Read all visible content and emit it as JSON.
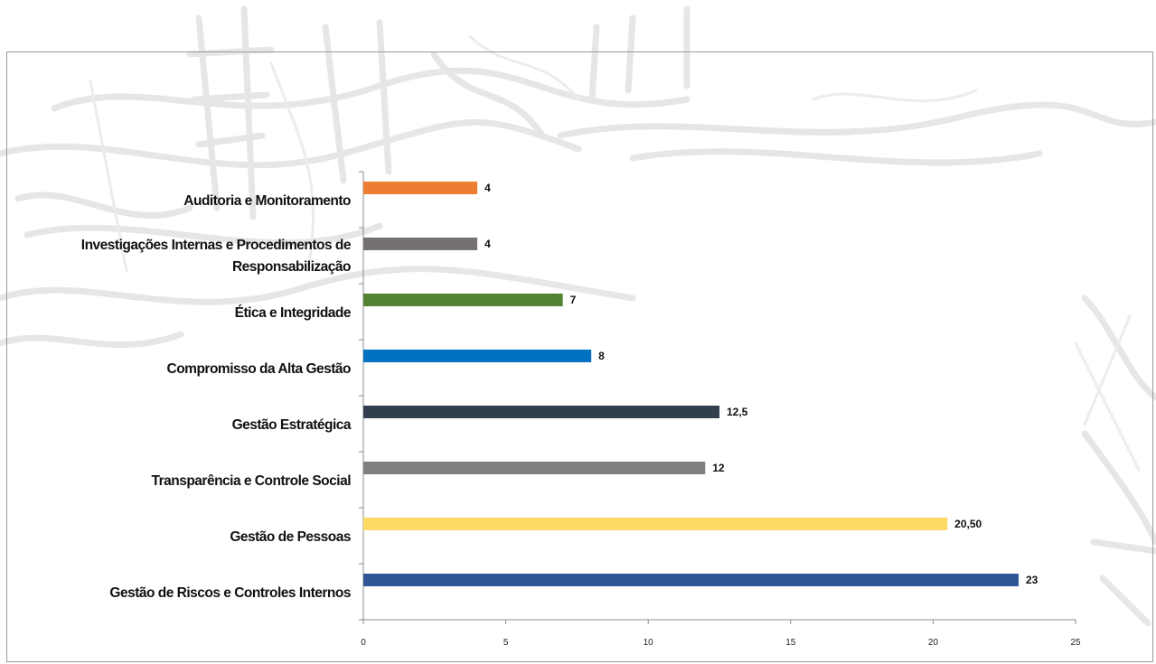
{
  "chart_data": {
    "type": "bar",
    "orientation": "horizontal",
    "categories": [
      "Auditoria e Monitoramento",
      "Investigações Internas e Procedimentos de Responsabilização",
      "Ética e Integridade",
      "Compromisso da Alta Gestão",
      "Gestão Estratégica",
      "Transparência e Controle Social",
      "Gestão de Pessoas",
      "Gestão de Riscos e Controles Internos"
    ],
    "category_lines": [
      [
        "Auditoria e Monitoramento"
      ],
      [
        "Investigações Internas e Procedimentos de",
        "Responsabilização"
      ],
      [
        "Ética e Integridade"
      ],
      [
        "Compromisso da Alta Gestão"
      ],
      [
        "Gestão Estratégica"
      ],
      [
        "Transparência e Controle Social"
      ],
      [
        "Gestão de Pessoas"
      ],
      [
        "Gestão de Riscos e Controles Internos"
      ]
    ],
    "values": [
      4,
      4,
      7,
      8,
      12.5,
      12,
      20.5,
      23
    ],
    "value_labels": [
      "4",
      "4",
      "7",
      "8",
      "12,5",
      "12",
      "20,50",
      "23"
    ],
    "colors": [
      "#ed7d31",
      "#767171",
      "#548235",
      "#0070c0",
      "#323f4f",
      "#7f7f7f",
      "#ffd966",
      "#2f5597"
    ],
    "xlim": [
      0,
      25
    ],
    "xticks": [
      0,
      5,
      10,
      15,
      20,
      25
    ],
    "xtick_labels": [
      "0",
      "5",
      "10",
      "15",
      "20",
      "25"
    ],
    "title": "",
    "xlabel": "",
    "ylabel": "",
    "grid": false,
    "legend": "none"
  }
}
